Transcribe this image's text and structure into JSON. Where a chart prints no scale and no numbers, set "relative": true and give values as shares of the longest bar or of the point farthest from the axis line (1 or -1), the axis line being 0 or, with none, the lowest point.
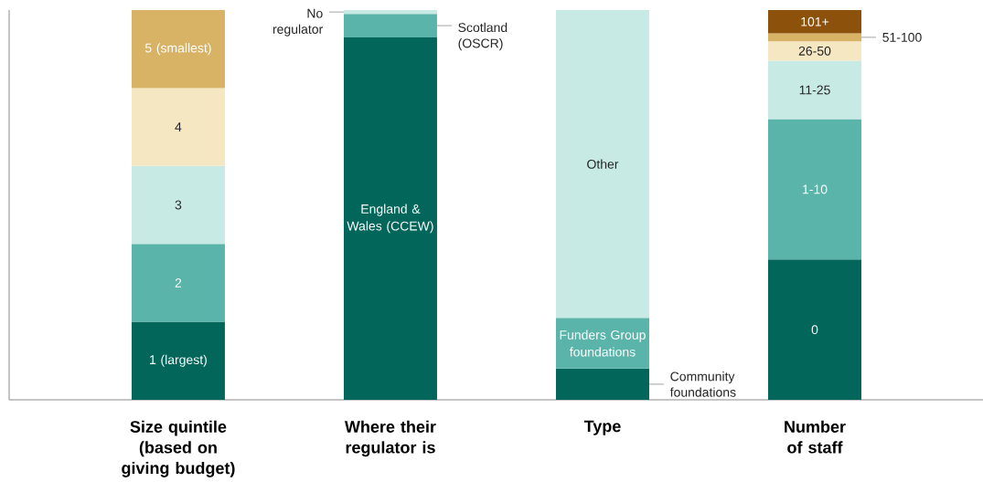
{
  "chart_data": {
    "type": "bar",
    "stacked": true,
    "relative": true,
    "categories": [
      "Size quintile (based on giving budget)",
      "Where their regulator is",
      "Type",
      "Number of staff"
    ],
    "series": [
      {
        "name": "1 (largest)",
        "color": "#02665b",
        "values": [
          0.2,
          null,
          null,
          null
        ]
      },
      {
        "name": "2",
        "color": "#5ab4a9",
        "values": [
          0.2,
          null,
          null,
          null
        ]
      },
      {
        "name": "3",
        "color": "#c7eae4",
        "values": [
          0.2,
          null,
          null,
          null
        ]
      },
      {
        "name": "4",
        "color": "#f6e7c3",
        "values": [
          0.2,
          null,
          null,
          null
        ]
      },
      {
        "name": "5 (smallest)",
        "color": "#d8b365",
        "values": [
          0.2,
          null,
          null,
          null
        ]
      },
      {
        "name": "England & Wales (CCEW)",
        "color": "#02665b",
        "values": [
          null,
          0.93,
          null,
          null
        ]
      },
      {
        "name": "Scotland (OSCR)",
        "color": "#5ab4a9",
        "values": [
          null,
          0.06,
          null,
          null
        ]
      },
      {
        "name": "No regulator",
        "color": "#c7eae4",
        "values": [
          null,
          0.01,
          null,
          null
        ]
      },
      {
        "name": "Community foundations",
        "color": "#02665b",
        "values": [
          null,
          null,
          0.08,
          null
        ]
      },
      {
        "name": "Funders Group foundations",
        "color": "#5ab4a9",
        "values": [
          null,
          null,
          0.13,
          null
        ]
      },
      {
        "name": "Other",
        "color": "#c7eae4",
        "values": [
          null,
          null,
          0.79,
          null
        ]
      },
      {
        "name": "0",
        "color": "#02665b",
        "values": [
          null,
          null,
          null,
          0.36
        ]
      },
      {
        "name": "1-10",
        "color": "#5ab4a9",
        "values": [
          null,
          null,
          null,
          0.36
        ]
      },
      {
        "name": "11-25",
        "color": "#c7eae4",
        "values": [
          null,
          null,
          null,
          0.15
        ]
      },
      {
        "name": "26-50",
        "color": "#f6e7c3",
        "values": [
          null,
          null,
          null,
          0.05
        ]
      },
      {
        "name": "51-100",
        "color": "#d8b365",
        "values": [
          null,
          null,
          null,
          0.02
        ]
      },
      {
        "name": "101+",
        "color": "#8c510a",
        "values": [
          null,
          null,
          null,
          0.06
        ]
      }
    ]
  }
}
